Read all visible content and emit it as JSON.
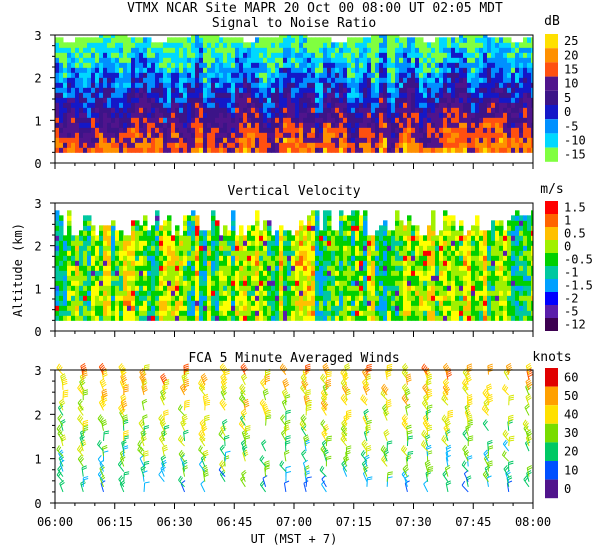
{
  "header": {
    "line1": "VTMX  NCAR Site  MAPR 20 Oct 00  08:00 UT  02:05  MDT"
  },
  "axes": {
    "ylabel": "Altitude (km)",
    "xlabel": "UT  (MST + 7)",
    "y_ticks": [
      "0",
      "1",
      "2",
      "3"
    ],
    "ylim": [
      0,
      3
    ],
    "x_ticks": [
      "06:00",
      "06:15",
      "06:30",
      "06:45",
      "07:00",
      "07:15",
      "07:30",
      "07:45",
      "08:00"
    ]
  },
  "colors": {
    "snr": [
      "#80ff40",
      "#00d8ff",
      "#0090ff",
      "#1418c8",
      "#3c1488",
      "#50148c",
      "#ff5010",
      "#ff9000",
      "#ffe000"
    ],
    "vel": [
      "#3c0050",
      "#5a1eaa",
      "#0000ff",
      "#1e64ff",
      "#00a0ff",
      "#00c8a0",
      "#00d000",
      "#a0f000",
      "#ffff00",
      "#ffc000",
      "#ff6400",
      "#ff0000"
    ],
    "winds": [
      "#50148c",
      "#0050ff",
      "#00b4ff",
      "#00c864",
      "#78dc00",
      "#d4e800",
      "#ffe000",
      "#ffa000",
      "#ff5000",
      "#e00000"
    ]
  },
  "chart_data": [
    {
      "type": "heatmap",
      "title": "Signal to Noise Ratio",
      "unit": "dB",
      "colorbar_labels": [
        "25",
        "20",
        "15",
        "10",
        "5",
        "0",
        "-5",
        "-10",
        "-15"
      ],
      "colorbar_values": [
        25,
        20,
        15,
        10,
        5,
        0,
        -5,
        -10,
        -15
      ],
      "ylim": [
        0,
        3
      ],
      "x_range": [
        "06:00",
        "08:00"
      ],
      "data_altitude_km": [
        0.2,
        3.0
      ]
    },
    {
      "type": "heatmap",
      "title": "Vertical Velocity",
      "unit": "m/s",
      "colorbar_labels": [
        "1.5",
        "1",
        "0.5",
        "0",
        "-0.5",
        "-1",
        "-1.5",
        "-2",
        "-5",
        "-12"
      ],
      "colorbar_values": [
        1.5,
        1,
        0.5,
        0,
        -0.5,
        -1,
        -1.5,
        -2,
        -5,
        -12
      ],
      "ylim": [
        0,
        3
      ],
      "x_range": [
        "06:00",
        "08:00"
      ],
      "data_altitude_km": [
        0.2,
        3.0
      ]
    },
    {
      "type": "scatter",
      "title": "FCA 5 Minute Averaged Winds",
      "unit": "knots",
      "colorbar_labels": [
        "60",
        "50",
        "40",
        "30",
        "20",
        "10",
        "0"
      ],
      "colorbar_values": [
        60,
        50,
        40,
        30,
        20,
        10,
        0
      ],
      "ylim": [
        0,
        3
      ],
      "x_range": [
        "06:00",
        "08:00"
      ],
      "profile_interval_min": 5
    }
  ]
}
